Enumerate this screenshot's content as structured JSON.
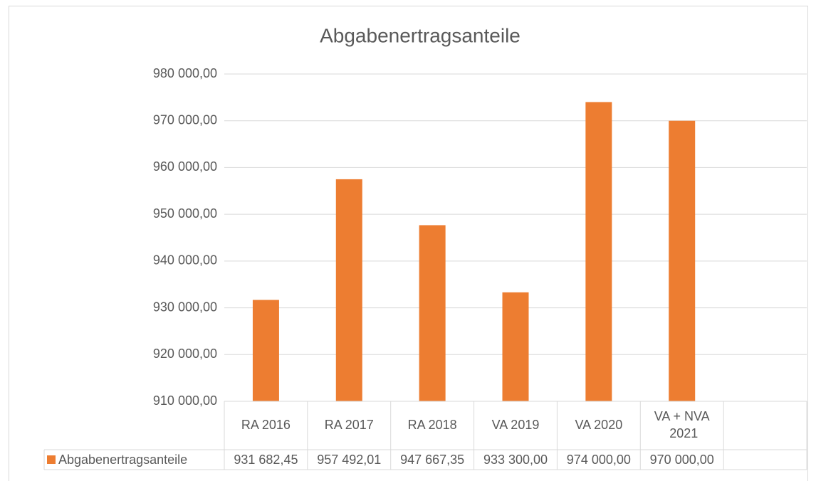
{
  "chart_data": {
    "type": "bar",
    "title": "Abgabenertragsanteile",
    "categories": [
      "RA 2016",
      "RA 2017",
      "RA 2018",
      "VA 2019",
      "VA 2020",
      "VA + NVA 2021",
      null
    ],
    "series": [
      {
        "name": "Abgabenertragsanteile",
        "color": "#ed7d31",
        "values": [
          931682.45,
          957492.01,
          947667.35,
          933300,
          974000,
          970000,
          null
        ],
        "value_labels": [
          "931 682,45",
          "957 492,01",
          "947 667,35",
          "933 300,00",
          "974 000,00",
          "970 000,00",
          null
        ]
      }
    ],
    "ylim": [
      910000,
      980000
    ],
    "yticks": [
      {
        "value": 910000,
        "label": "910 000,00"
      },
      {
        "value": 920000,
        "label": "920 000,00"
      },
      {
        "value": 930000,
        "label": "930 000,00"
      },
      {
        "value": 940000,
        "label": "940 000,00"
      },
      {
        "value": 950000,
        "label": "950 000,00"
      },
      {
        "value": 960000,
        "label": "960 000,00"
      },
      {
        "value": 970000,
        "label": "970 000,00"
      },
      {
        "value": 980000,
        "label": "980 000,00"
      }
    ],
    "grid": true,
    "data_table": true
  }
}
